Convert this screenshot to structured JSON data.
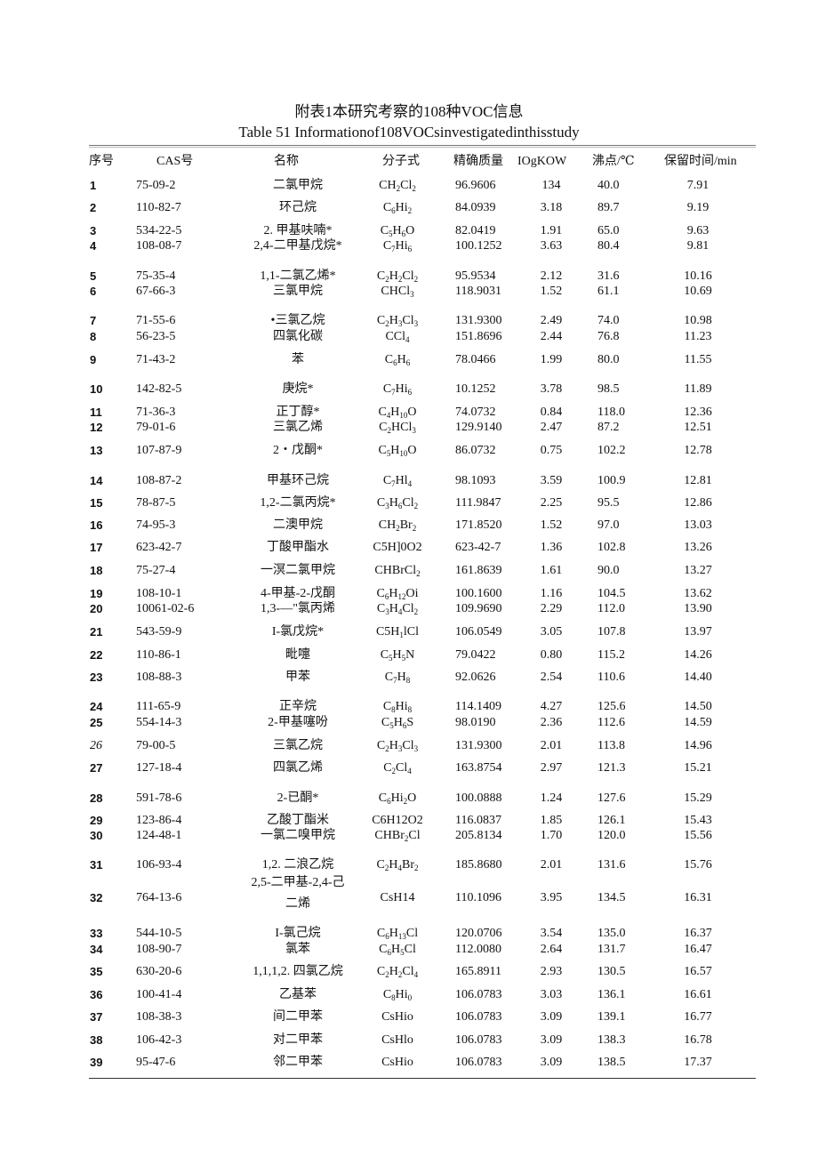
{
  "title_cn": "附表1本研究考察的108种VOC信息",
  "title_en": "Table 51   Informationof108VOCsinvestigatedinthisstudy",
  "headers": {
    "num": "序号",
    "cas": "CAS号",
    "name": "名称",
    "formula": "分子式",
    "mass": "精确质量",
    "kow": "IOgKOW",
    "bp": "沸点/℃",
    "rt": "保留时间/min"
  },
  "rows": [
    {
      "num": "1",
      "cas": "75-09-2",
      "name": "二氯甲烷",
      "formula": [
        "CH",
        "2",
        "Cl",
        "2"
      ],
      "mass": "96.9606",
      "kow": "134",
      "bp": "40.0",
      "rt": "7.91"
    },
    {
      "num": "2",
      "cas": "110-82-7",
      "name": "环己烷",
      "formula": [
        "C",
        "6",
        "Hi",
        "2"
      ],
      "mass": "84.0939",
      "kow": "3.18",
      "bp": "89.7",
      "rt": "9.19"
    },
    {
      "num": "3",
      "cas": "534-22-5",
      "name": "2. 甲基呋喃*",
      "formula": [
        "C",
        "5",
        "H",
        "6",
        "O"
      ],
      "mass": "82.0419",
      "kow": "1.91",
      "bp": "65.0",
      "rt": "9.63"
    },
    {
      "num": "4",
      "cas": "108-08-7",
      "name": "2,4-二甲基戊烷*",
      "formula": [
        "C",
        "7",
        "Hi",
        "6"
      ],
      "mass": "100.1252",
      "kow": "3.63",
      "bp": "80.4",
      "rt": "9.81"
    },
    {
      "num": "5",
      "cas": "75-35-4",
      "name": "1,1-二氯乙烯*",
      "formula": [
        "C",
        "2",
        "H",
        "2",
        "Cl",
        "2"
      ],
      "mass": "95.9534",
      "kow": "2.12",
      "bp": "31.6",
      "rt": "10.16"
    },
    {
      "num": "6",
      "cas": "67-66-3",
      "name": "三氯甲烷",
      "formula": [
        "CHCl",
        "3"
      ],
      "mass": "118.9031",
      "kow": "1.52",
      "bp": "61.1",
      "rt": "10.69"
    },
    {
      "num": "7",
      "cas": "71-55-6",
      "name": "•三氯乙烷",
      "formula": [
        "C",
        "2",
        "H",
        "3",
        "Cl",
        "3"
      ],
      "mass": "131.9300",
      "kow": "2.49",
      "bp": "74.0",
      "rt": "10.98"
    },
    {
      "num": "8",
      "cas": "56-23-5",
      "name": "四氯化碳",
      "formula": [
        "CCl",
        "4"
      ],
      "mass": "151.8696",
      "kow": "2.44",
      "bp": "76.8",
      "rt": "11.23"
    },
    {
      "num": "9",
      "cas": "71-43-2",
      "name": "苯",
      "formula": [
        "C",
        "6",
        "H",
        "6"
      ],
      "mass": "78.0466",
      "kow": "1.99",
      "bp": "80.0",
      "rt": "11.55"
    },
    {
      "num": "10",
      "cas": "142-82-5",
      "name": "庚烷*",
      "formula": [
        "C",
        "7",
        "Hi",
        "6"
      ],
      "mass": "10.1252",
      "kow": "3.78",
      "bp": "98.5",
      "rt": "11.89"
    },
    {
      "num": "11",
      "cas": "71-36-3",
      "name": "正丁醇*",
      "formula": [
        "C",
        "4",
        "H",
        "10",
        "O"
      ],
      "mass": "74.0732",
      "kow": "0.84",
      "bp": "118.0",
      "rt": "12.36"
    },
    {
      "num": "12",
      "cas": "79-01-6",
      "name": "三氯乙烯",
      "formula": [
        "C",
        "2",
        "HCl",
        "3"
      ],
      "mass": "129.9140",
      "kow": "2.47",
      "bp": "87.2",
      "rt": "12.51"
    },
    {
      "num": "13",
      "cas": "107-87-9",
      "name": "2・戊酮*",
      "formula": [
        "C",
        "5",
        "H",
        "10",
        "O"
      ],
      "mass": "86.0732",
      "kow": "0.75",
      "bp": "102.2",
      "rt": "12.78"
    },
    {
      "num": "14",
      "cas": "108-87-2",
      "name": "甲基环己烷",
      "formula": [
        "C",
        "7",
        "Hl",
        "4"
      ],
      "mass": "98.1093",
      "kow": "3.59",
      "bp": "100.9",
      "rt": "12.81"
    },
    {
      "num": "15",
      "cas": "78-87-5",
      "name": "1,2-二氯丙烷*",
      "formula": [
        "C",
        "3",
        "H",
        "6",
        "Cl",
        "2"
      ],
      "mass": "111.9847",
      "kow": "2.25",
      "bp": "95.5",
      "rt": "12.86"
    },
    {
      "num": "16",
      "cas": "74-95-3",
      "name": "二澳甲烷",
      "formula": [
        "CH",
        "2",
        "Br",
        "2"
      ],
      "mass": "171.8520",
      "kow": "1.52",
      "bp": "97.0",
      "rt": "13.03"
    },
    {
      "num": "17",
      "cas": "623-42-7",
      "name": "丁酸甲酯水",
      "formula": [
        "C5H]0O2"
      ],
      "mass": "623-42-7",
      "kow": "1.36",
      "bp": "102.8",
      "rt": "13.26"
    },
    {
      "num": "18",
      "cas": "75-27-4",
      "name": "一溟二氯甲烷",
      "formula": [
        "CHBrCl",
        "2"
      ],
      "mass": "161.8639",
      "kow": "1.61",
      "bp": "90.0",
      "rt": "13.27"
    },
    {
      "num": "19",
      "cas": "108-10-1",
      "name": "4-甲基-2-戊酮",
      "formula": [
        "C",
        "6",
        "H",
        "12",
        "Oi"
      ],
      "mass": "100.1600",
      "kow": "1.16",
      "bp": "104.5",
      "rt": "13.62"
    },
    {
      "num": "20",
      "cas": "10061-02-6",
      "name": "1,3-—\"氯丙烯",
      "formula": [
        "C",
        "3",
        "H",
        "4",
        "Cl",
        "2"
      ],
      "mass": "109.9690",
      "kow": "2.29",
      "bp": "112.0",
      "rt": "13.90"
    },
    {
      "num": "21",
      "cas": "543-59-9",
      "name": "I-氯戊烷*",
      "formula": [
        "C5H",
        "1",
        "lCl"
      ],
      "mass": "106.0549",
      "kow": "3.05",
      "bp": "107.8",
      "rt": "13.97"
    },
    {
      "num": "22",
      "cas": "110-86-1",
      "name": "毗嚏",
      "formula": [
        "C",
        "5",
        "H",
        "5",
        "N"
      ],
      "mass": "79.0422",
      "kow": "0.80",
      "bp": "115.2",
      "rt": "14.26"
    },
    {
      "num": "23",
      "cas": "108-88-3",
      "name": "甲苯",
      "formula": [
        "C",
        "7",
        "H",
        "8"
      ],
      "mass": "92.0626",
      "kow": "2.54",
      "bp": "110.6",
      "rt": "14.40"
    },
    {
      "num": "24",
      "cas": "111-65-9",
      "name": "正辛烷",
      "formula": [
        "C",
        "8",
        "Hi",
        "8"
      ],
      "mass": "114.1409",
      "kow": "4.27",
      "bp": "125.6",
      "rt": "14.50"
    },
    {
      "num": "25",
      "cas": "554-14-3",
      "name": "2-甲基噻吩",
      "formula": [
        "C",
        "5",
        "H",
        "6",
        "S"
      ],
      "mass": "98.0190",
      "kow": "2.36",
      "bp": "112.6",
      "rt": "14.59"
    },
    {
      "num": "26",
      "cas": "79-00-5",
      "name": "三氯乙烷",
      "formula": [
        "C",
        "2",
        "H",
        "3",
        "Cl",
        "3"
      ],
      "mass": "131.9300",
      "kow": "2.01",
      "bp": "113.8",
      "rt": "14.96"
    },
    {
      "num": "27",
      "cas": "127-18-4",
      "name": "四氯乙烯",
      "formula": [
        "C",
        "2",
        "Cl",
        "4"
      ],
      "mass": "163.8754",
      "kow": "2.97",
      "bp": "121.3",
      "rt": "15.21"
    },
    {
      "num": "28",
      "cas": "591-78-6",
      "name": "2-已酮*",
      "formula": [
        "C",
        "6",
        "Hi",
        "2",
        "O"
      ],
      "mass": "100.0888",
      "kow": "1.24",
      "bp": "127.6",
      "rt": "15.29"
    },
    {
      "num": "29",
      "cas": "123-86-4",
      "name": "乙酸丁酯米",
      "formula": [
        "C6H12O2"
      ],
      "mass": "116.0837",
      "kow": "1.85",
      "bp": "126.1",
      "rt": "15.43"
    },
    {
      "num": "30",
      "cas": "124-48-1",
      "name": "一氯二嗅甲烷",
      "formula": [
        "CHBr",
        "2",
        "Cl"
      ],
      "mass": "205.8134",
      "kow": "1.70",
      "bp": "120.0",
      "rt": "15.56"
    },
    {
      "num": "31",
      "cas": "106-93-4",
      "name": "1,2. 二浪乙烷",
      "formula": [
        "C",
        "2",
        "H",
        "4",
        "Br",
        "2"
      ],
      "mass": "185.8680",
      "kow": "2.01",
      "bp": "131.6",
      "rt": "15.76"
    },
    {
      "num": "32",
      "cas": "764-13-6",
      "name": "2,5-二甲基-2,4-己",
      "name2": "二烯",
      "formula": [
        "CsH14"
      ],
      "mass": "110.1096",
      "kow": "3.95",
      "bp": "134.5",
      "rt": "16.31"
    },
    {
      "num": "33",
      "cas": "544-10-5",
      "name": "I-氯己烷",
      "formula": [
        "C",
        "6",
        "H",
        "13",
        "Cl"
      ],
      "mass": "120.0706",
      "kow": "3.54",
      "bp": "135.0",
      "rt": "16.37"
    },
    {
      "num": "34",
      "cas": "108-90-7",
      "name": "氯苯",
      "formula": [
        "C",
        "6",
        "H",
        "5",
        "Cl"
      ],
      "mass": "112.0080",
      "kow": "2.64",
      "bp": "131.7",
      "rt": "16.47"
    },
    {
      "num": "35",
      "cas": "630-20-6",
      "name": "1,1,1,2. 四氯乙烷",
      "formula": [
        "C",
        "2",
        "H",
        "2",
        "Cl",
        "4"
      ],
      "mass": "165.8911",
      "kow": "2.93",
      "bp": "130.5",
      "rt": "16.57"
    },
    {
      "num": "36",
      "cas": "100-41-4",
      "name": "乙基苯",
      "formula": [
        "C",
        "8",
        "Hi",
        "0"
      ],
      "mass": "106.0783",
      "kow": "3.03",
      "bp": "136.1",
      "rt": "16.61"
    },
    {
      "num": "37",
      "cas": "108-38-3",
      "name": "间二甲苯",
      "formula": [
        "CsHio"
      ],
      "mass": "106.0783",
      "kow": "3.09",
      "bp": "139.1",
      "rt": "16.77"
    },
    {
      "num": "38",
      "cas": "106-42-3",
      "name": "对二甲苯",
      "formula": [
        "CsHlo"
      ],
      "mass": "106.0783",
      "kow": "3.09",
      "bp": "138.3",
      "rt": "16.78"
    },
    {
      "num": "39",
      "cas": "95-47-6",
      "name": "邻二甲苯",
      "formula": [
        "CsHio"
      ],
      "mass": "106.0783",
      "kow": "3.09",
      "bp": "138.5",
      "rt": "17.37"
    }
  ]
}
